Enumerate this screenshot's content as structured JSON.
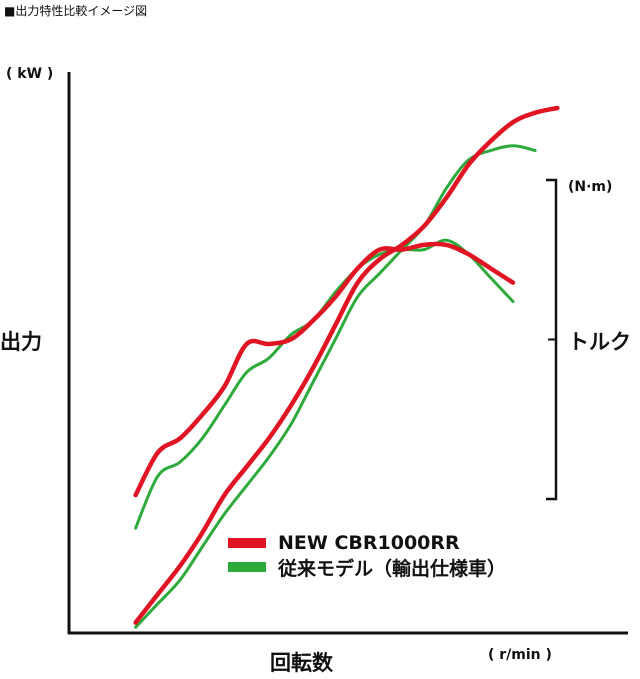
{
  "caption": "■出力特性比較イメージ図",
  "chart_data": {
    "type": "line",
    "title": "■出力特性比較イメージ図",
    "xlabel": "回転数",
    "xunit": "( r/min )",
    "ylabel_left": "出力",
    "yunit_left": "( kW )",
    "ylabel_right": "トルク",
    "yunit_right": "(N·m)",
    "grid": false,
    "legend_position": "bottom-center",
    "xlim": [
      0,
      100
    ],
    "ylim": [
      0,
      100
    ],
    "x": [
      12,
      16,
      20,
      24,
      28,
      32,
      36,
      40,
      44,
      48,
      52,
      56,
      60,
      64,
      68,
      72,
      76,
      80,
      84,
      88,
      92,
      96,
      100
    ],
    "series": [
      {
        "name": "NEW CBR1000RR",
        "color": "#e01422",
        "curves": {
          "power": [
            2,
            8,
            14,
            21,
            29,
            35,
            41,
            48,
            56,
            65,
            74,
            79,
            82,
            86,
            92,
            99,
            104,
            108,
            110,
            111,
            null,
            null,
            null
          ],
          "torque": [
            29,
            38,
            41,
            46,
            52,
            61,
            61,
            62,
            66,
            71,
            77,
            81,
            81,
            82,
            82,
            80,
            77,
            74,
            null,
            null,
            null,
            null,
            null
          ]
        }
      },
      {
        "name": "従来モデル（輸出仕様車）",
        "color": "#2eaa3c",
        "curves": {
          "power": [
            1,
            6,
            11,
            18,
            25,
            31,
            37,
            44,
            53,
            62,
            71,
            76,
            81,
            86,
            94,
            100,
            102,
            103,
            102,
            null,
            null,
            null,
            null
          ],
          "torque": [
            22,
            33,
            36,
            41,
            48,
            55,
            58,
            63,
            66,
            72,
            77,
            80,
            81,
            81,
            83,
            80,
            75,
            70,
            null,
            null,
            null,
            null,
            null
          ]
        }
      }
    ],
    "torque_axis_ticks": 3
  }
}
